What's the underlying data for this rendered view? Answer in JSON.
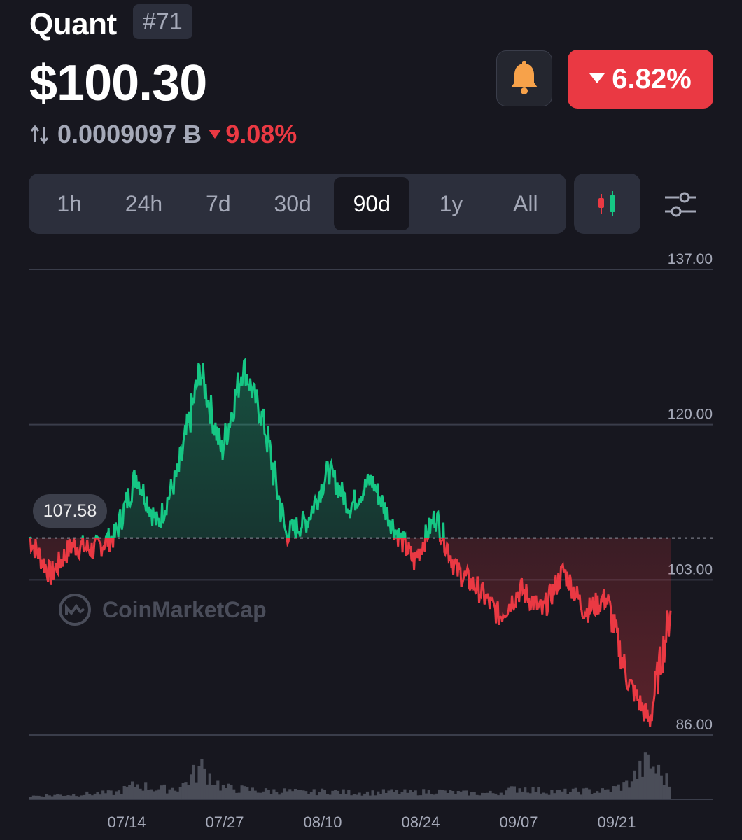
{
  "header": {
    "coin_name": "Quant",
    "rank": "#71",
    "price": "$100.30",
    "change_24h": "6.82%",
    "btc_price": "0.0009097 Ƀ",
    "btc_change": "9.08%"
  },
  "icons": {
    "bell": "bell-icon",
    "change_arrow": "triangle-down-icon",
    "swap": "swap-vertical-icon",
    "candles": "candlestick-icon",
    "settings": "sliders-icon"
  },
  "colors": {
    "background": "#17171f",
    "up": "#16c784",
    "down": "#ea3943",
    "bell": "#f7a24a"
  },
  "range_tabs": [
    {
      "label": "1h",
      "active": false
    },
    {
      "label": "24h",
      "active": false
    },
    {
      "label": "7d",
      "active": false
    },
    {
      "label": "30d",
      "active": false
    },
    {
      "label": "90d",
      "active": true
    },
    {
      "label": "1y",
      "active": false
    },
    {
      "label": "All",
      "active": false
    }
  ],
  "watermark": "CoinMarketCap",
  "chart_data": {
    "type": "line",
    "y_ticks": [
      "137.00",
      "120.00",
      "103.00",
      "86.00"
    ],
    "ylim": [
      86,
      137
    ],
    "x_ticks": [
      "07/14",
      "07/27",
      "08/10",
      "08/24",
      "09/07",
      "09/21"
    ],
    "baseline": 107.58,
    "baseline_label": "107.58",
    "grid": true,
    "x": [
      "07/01",
      "07/04",
      "07/07",
      "07/10",
      "07/13",
      "07/16",
      "07/19",
      "07/22",
      "07/25",
      "07/27",
      "07/30",
      "08/02",
      "08/05",
      "08/08",
      "08/11",
      "08/14",
      "08/17",
      "08/20",
      "08/23",
      "08/26",
      "08/29",
      "09/01",
      "09/04",
      "09/07",
      "09/10",
      "09/13",
      "09/16",
      "09/19",
      "09/22",
      "09/25",
      "09/27"
    ],
    "values": [
      107.6,
      103.5,
      106.8,
      106.3,
      107.8,
      114.5,
      109.0,
      115.0,
      126.0,
      117.0,
      126.5,
      120.0,
      108.0,
      109.5,
      115.0,
      111.0,
      114.0,
      109.0,
      105.0,
      110.0,
      104.0,
      102.0,
      99.0,
      102.0,
      99.5,
      104.0,
      99.5,
      101.0,
      92.0,
      87.5,
      99.6
    ],
    "volume": [
      0.2,
      0.25,
      0.3,
      0.35,
      0.4,
      0.9,
      0.6,
      0.7,
      1.9,
      0.7,
      0.6,
      0.5,
      0.5,
      0.4,
      0.5,
      0.4,
      0.4,
      0.45,
      0.4,
      0.5,
      0.4,
      0.35,
      0.4,
      0.7,
      0.5,
      0.45,
      0.5,
      0.5,
      0.9,
      2.2,
      1.0
    ]
  }
}
